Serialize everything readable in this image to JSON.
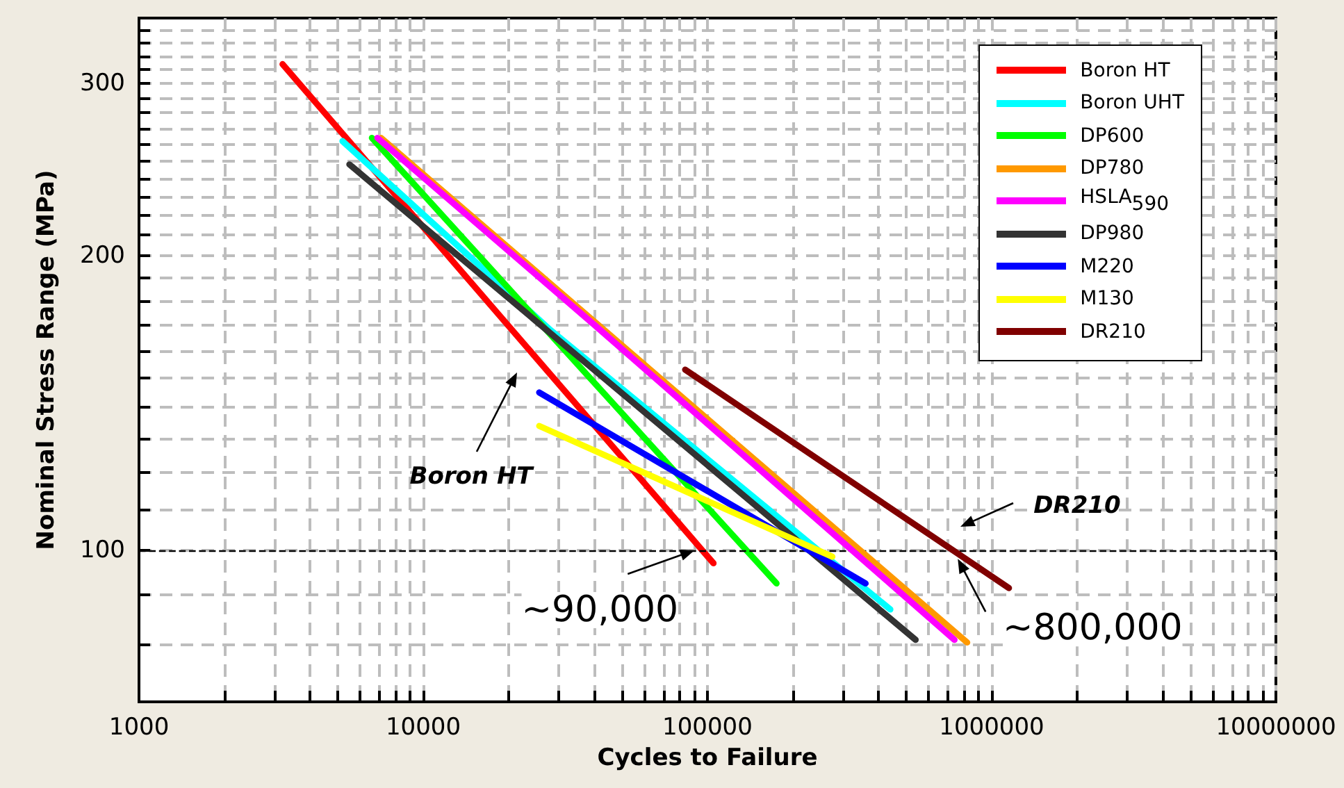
{
  "chart_data": {
    "type": "line",
    "xlabel": "Cycles to Failure",
    "ylabel": "Nominal Stress Range (MPa)",
    "log": "xy",
    "xlim": [
      1000,
      10000000
    ],
    "ylim": [
      70,
      350
    ],
    "xticks": [
      1000,
      {
        "value": 2000,
        "label": null
      },
      {
        "value": 3000,
        "label": null
      },
      {
        "value": 4000,
        "label": null
      },
      {
        "value": 5000,
        "label": null
      },
      {
        "value": 6000,
        "label": null
      },
      {
        "value": 7000,
        "label": null
      },
      {
        "value": 8000,
        "label": null
      },
      {
        "value": 9000,
        "label": null
      },
      10000,
      {
        "value": 20000,
        "label": null
      },
      {
        "value": 30000,
        "label": null
      },
      {
        "value": 40000,
        "label": null
      },
      {
        "value": 50000,
        "label": null
      },
      {
        "value": 60000,
        "label": null
      },
      {
        "value": 70000,
        "label": null
      },
      {
        "value": 80000,
        "label": null
      },
      {
        "value": 90000,
        "label": null
      },
      100000,
      {
        "value": 200000,
        "label": null
      },
      {
        "value": 300000,
        "label": null
      },
      {
        "value": 400000,
        "label": null
      },
      {
        "value": 500000,
        "label": null
      },
      {
        "value": 600000,
        "label": null
      },
      {
        "value": 700000,
        "label": null
      },
      {
        "value": 800000,
        "label": null
      },
      {
        "value": 900000,
        "label": null
      },
      1000000,
      {
        "value": 2000000,
        "label": null
      },
      {
        "value": 3000000,
        "label": null
      },
      {
        "value": 4000000,
        "label": null
      },
      {
        "value": 5000000,
        "label": null
      },
      {
        "value": 6000000,
        "label": null
      },
      {
        "value": 7000000,
        "label": null
      },
      {
        "value": 8000000,
        "label": null
      },
      {
        "value": 9000000,
        "label": null
      },
      10000000
    ],
    "yticks": [
      {
        "value": 80,
        "label": null
      },
      {
        "value": 90,
        "label": null
      },
      100,
      {
        "value": 110,
        "label": null
      },
      {
        "value": 120,
        "label": null
      },
      {
        "value": 130,
        "label": null
      },
      {
        "value": 140,
        "label": null
      },
      {
        "value": 150,
        "label": null
      },
      {
        "value": 160,
        "label": null
      },
      {
        "value": 170,
        "label": null
      },
      {
        "value": 180,
        "label": null
      },
      {
        "value": 190,
        "label": null
      },
      200,
      {
        "value": 210,
        "label": null
      },
      {
        "value": 220,
        "label": null
      },
      {
        "value": 230,
        "label": null
      },
      {
        "value": 240,
        "label": null
      },
      {
        "value": 250,
        "label": null
      },
      {
        "value": 260,
        "label": null
      },
      {
        "value": 270,
        "label": null
      },
      {
        "value": 280,
        "label": null
      },
      {
        "value": 290,
        "label": null
      },
      300,
      {
        "value": 310,
        "label": null
      },
      {
        "value": 320,
        "label": null
      },
      {
        "value": 330,
        "label": null
      },
      {
        "value": 340,
        "label": null
      }
    ],
    "grid": true,
    "legend": "top right",
    "marker": "none",
    "line_style": "solid",
    "series": [
      {
        "name": "Boron HT",
        "color": "#ff0000",
        "x": [
          3200,
          105000
        ],
        "values": [
          314,
          97
        ]
      },
      {
        "name": "Boron UHT",
        "color": "#00ffff",
        "x": [
          5200,
          28000,
          440000
        ],
        "values": [
          262,
          168,
          87
        ]
      },
      {
        "name": "DP600",
        "color": "#00ff00",
        "x": [
          6600,
          175000
        ],
        "values": [
          264,
          92.5
        ]
      },
      {
        "name": "DP780",
        "color": "#ff9900",
        "x": [
          7100,
          820000
        ],
        "values": [
          264,
          80.5
        ]
      },
      {
        "name": "HSLA$_{590}$",
        "color": "#ff00ff",
        "x": [
          6900,
          40000,
          740000
        ],
        "values": [
          264,
          170,
          81
        ]
      },
      {
        "name": "DP980",
        "color": "#333333",
        "x": [
          5500,
          540000
        ],
        "values": [
          248,
          81
        ]
      },
      {
        "name": "M220",
        "color": "#0000ff",
        "x": [
          25600,
          137000,
          360000
        ],
        "values": [
          145,
          109,
          92.5
        ]
      },
      {
        "name": "M130",
        "color": "#ffff00",
        "x": [
          25600,
          275000
        ],
        "values": [
          134,
          98.5
        ]
      },
      {
        "name": "DR210",
        "color": "#800000",
        "x": [
          83500,
          1150000
        ],
        "values": [
          153,
          91.5
        ]
      }
    ],
    "ref_lines": [
      {
        "axis": "y",
        "value": 100,
        "color": "#000000",
        "line_style": "dashed"
      }
    ],
    "annotations": [
      "Boron HT",
      {
        "text": "~90,000",
        "x": 90000,
        "y": 100
      },
      "DR210",
      {
        "text": "~800,000",
        "x": 760000,
        "y": 98
      }
    ]
  }
}
